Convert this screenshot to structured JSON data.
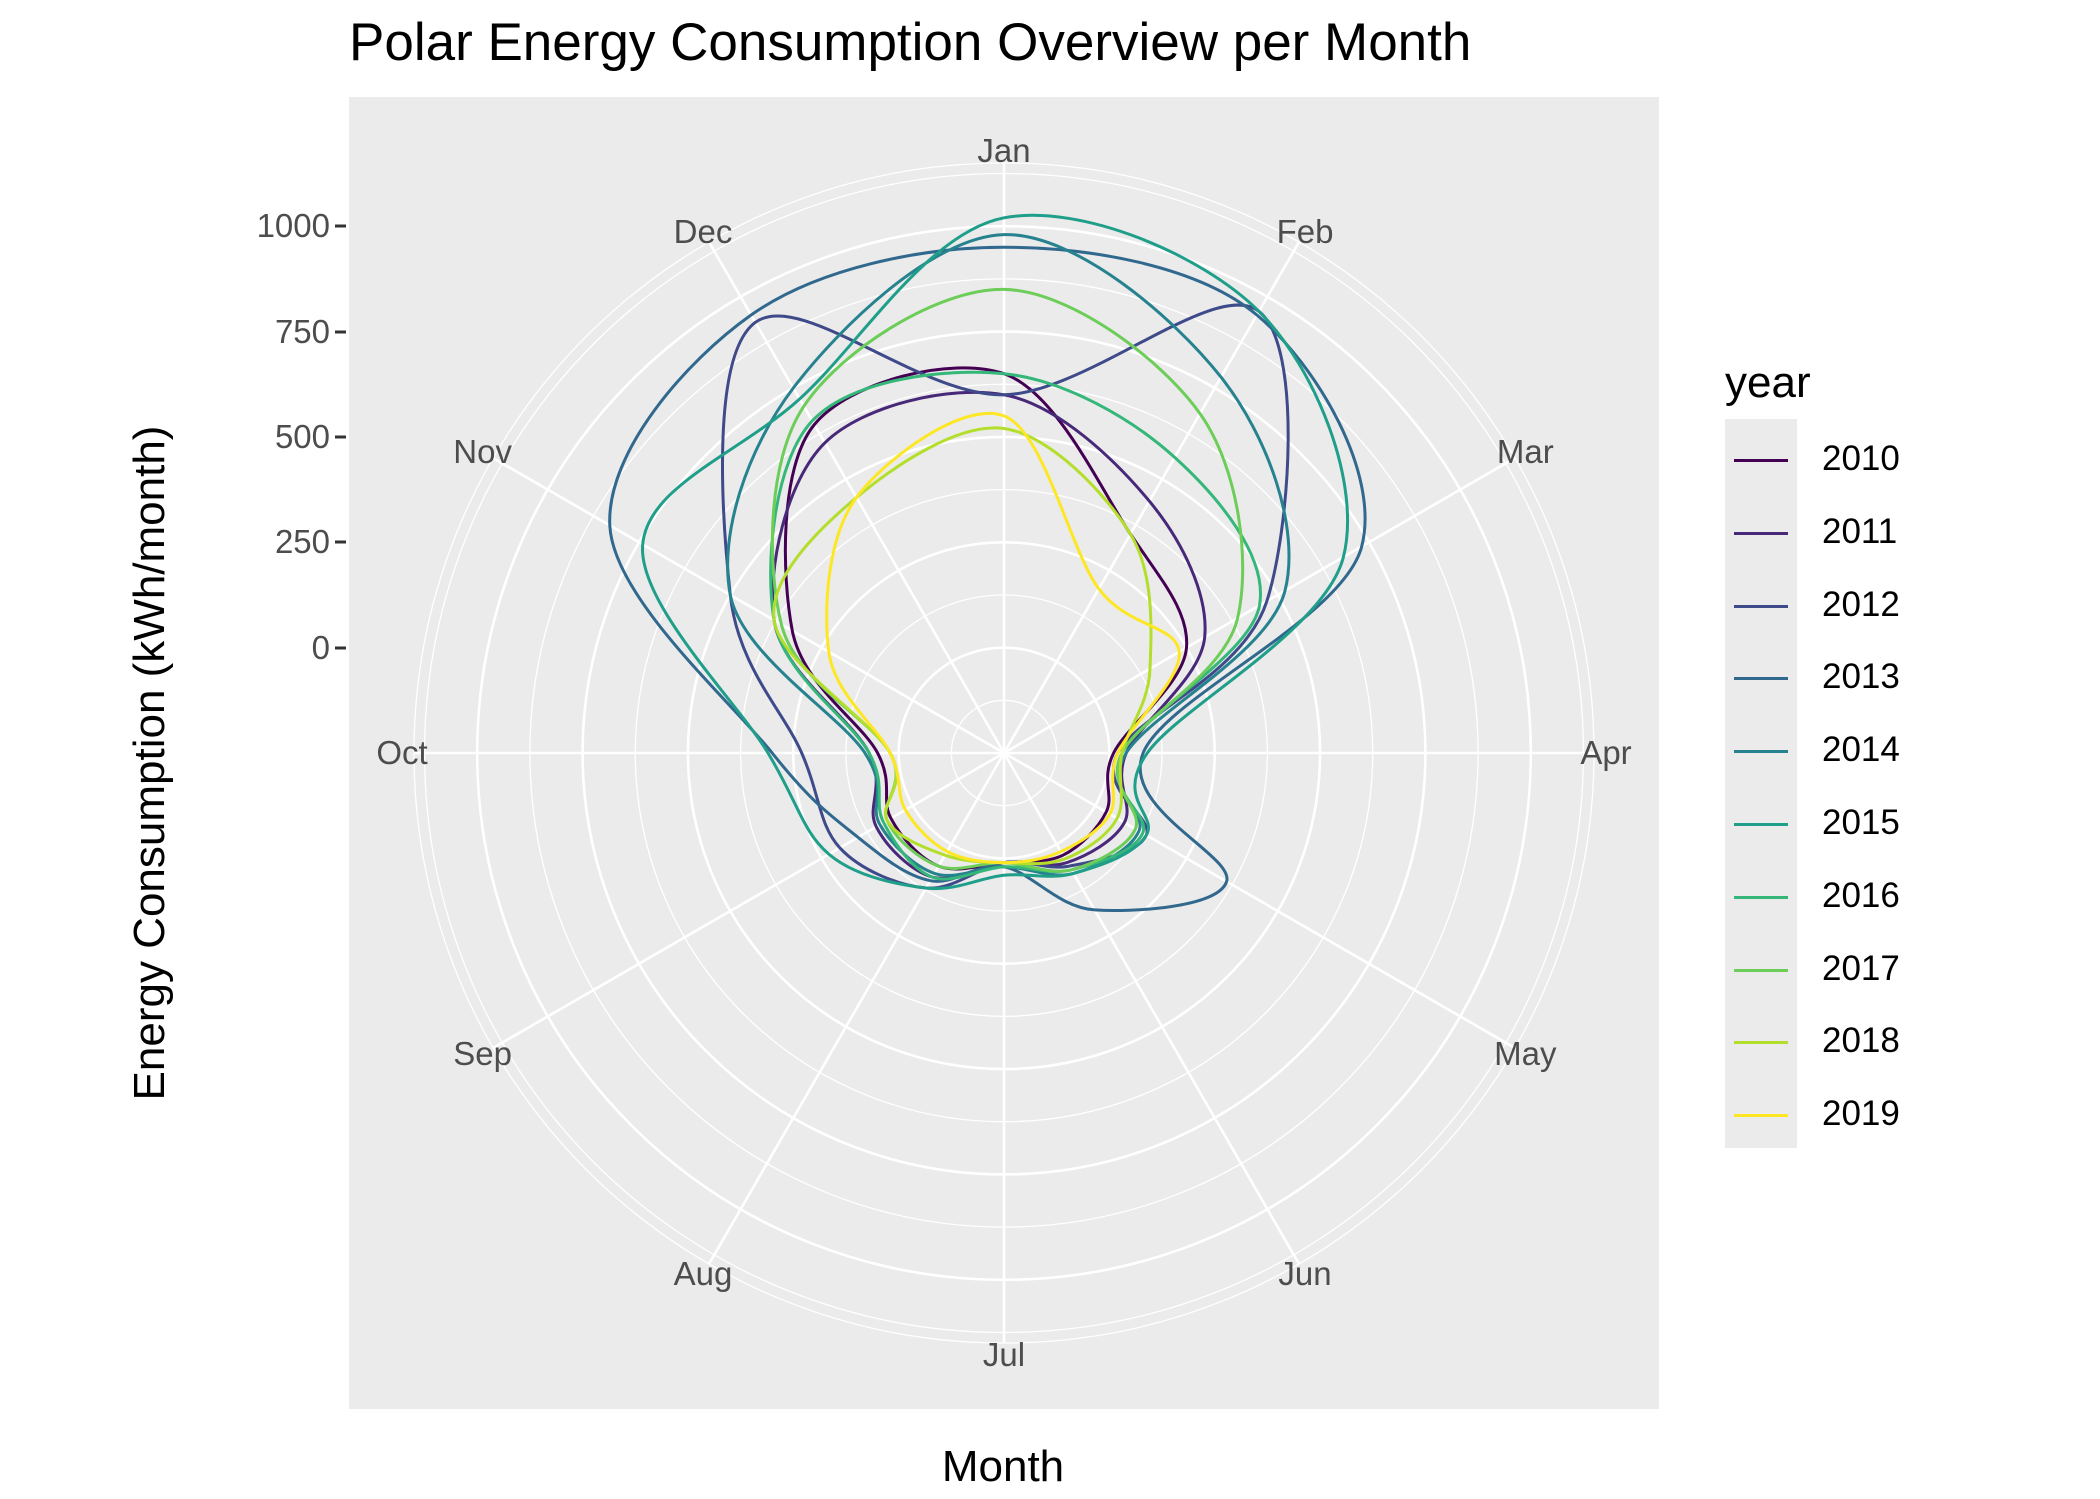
{
  "chart_data": {
    "type": "line",
    "coordinate_system": "polar",
    "title": "Polar Energy Consumption Overview per Month",
    "xlabel": "Month",
    "ylabel": "Energy Consumption (kWh/month)",
    "categories": [
      "Jan",
      "Feb",
      "Mar",
      "Apr",
      "May",
      "Jun",
      "Jul",
      "Aug",
      "Sep",
      "Oct",
      "Nov",
      "Dec"
    ],
    "y_ticks": [
      "0",
      "250",
      "500",
      "750",
      "1000"
    ],
    "y_tick_values": [
      0,
      250,
      500,
      750,
      1000
    ],
    "ylim": [
      -250,
      1150
    ],
    "grid": true,
    "legend_title": "year",
    "legend_position": "right",
    "series": [
      {
        "name": "2010",
        "color": "#440154",
        "values": [
          650,
          350,
          250,
          10,
          30,
          30,
          10,
          60,
          60,
          50,
          330,
          650
        ]
      },
      {
        "name": "2011",
        "color": "#482878",
        "values": [
          600,
          440,
          300,
          40,
          80,
          50,
          10,
          90,
          100,
          70,
          380,
          600
        ]
      },
      {
        "name": "2012",
        "color": "#3E4A89",
        "values": [
          600,
          960,
          470,
          20,
          140,
          60,
          10,
          120,
          200,
          230,
          500,
          930
        ]
      },
      {
        "name": "2013",
        "color": "#31688E",
        "values": [
          950,
          950,
          730,
          80,
          360,
          180,
          20,
          100,
          150,
          300,
          830,
          950
        ]
      },
      {
        "name": "2014",
        "color": "#26828E",
        "values": [
          980,
          780,
          520,
          40,
          120,
          80,
          20,
          80,
          90,
          80,
          500,
          750
        ]
      },
      {
        "name": "2015",
        "color": "#1F9E89",
        "values": [
          1020,
          960,
          680,
          90,
          140,
          80,
          40,
          120,
          230,
          310,
          740,
          720
        ]
      },
      {
        "name": "2016",
        "color": "#35B779",
        "values": [
          650,
          560,
          450,
          30,
          130,
          70,
          20,
          90,
          80,
          70,
          380,
          660
        ]
      },
      {
        "name": "2017",
        "color": "#6DCD59",
        "values": [
          850,
          680,
          390,
          30,
          110,
          70,
          10,
          60,
          70,
          20,
          360,
          700
        ]
      },
      {
        "name": "2018",
        "color": "#B4DE2C",
        "values": [
          520,
          350,
          150,
          30,
          60,
          40,
          10,
          30,
          70,
          20,
          380,
          450
        ]
      },
      {
        "name": "2019",
        "color": "#FDE725",
        "values": [
          550,
          200,
          230,
          20,
          40,
          20,
          10,
          20,
          20,
          20,
          230,
          450
        ]
      }
    ]
  }
}
